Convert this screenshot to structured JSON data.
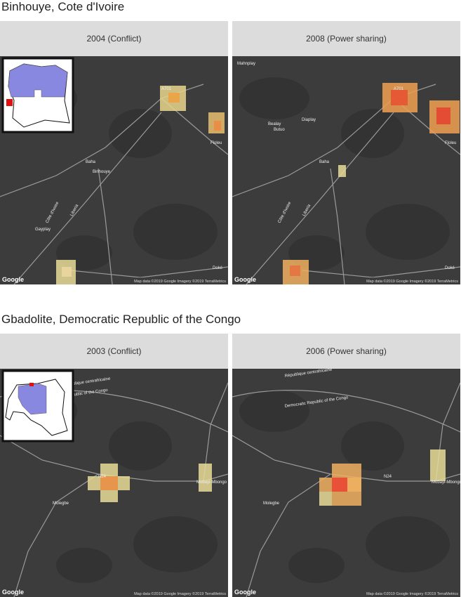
{
  "attribution": "Map data ©2019 Google  Imagery ©2019 TerraMetrics",
  "logo": "Google",
  "sections": [
    {
      "title": "Binhouye, Cote d'Ivoire",
      "panels": [
        {
          "header": "2004 (Conflict)",
          "places": [
            "Binhouye",
            "Baha",
            "Gayplay",
            "Liberia",
            "Côte d'Ivoire",
            "Floleu",
            "Doké",
            "A701"
          ]
        },
        {
          "header": "2008 (Power sharing)",
          "places": [
            "Mahnplay",
            "Bealay",
            "Butuo",
            "Diaplay",
            "Baha",
            "Liberia",
            "Côte d'Ivoire",
            "Floleu",
            "Doké",
            "A701"
          ]
        }
      ]
    },
    {
      "title": "Gbadolite, Democratic Republic of the Congo",
      "panels": [
        {
          "header": "2003 (Conflict)",
          "places": [
            "République centrafricaine",
            "Republic of the Congo",
            "N24",
            "Molegbe",
            "Mobayi-Mbongo"
          ]
        },
        {
          "header": "2006 (Power sharing)",
          "places": [
            "République centrafricaine",
            "Democratic Republic of the Congo",
            "N24",
            "Molegbe",
            "Mobayi-Mbongo"
          ]
        }
      ]
    }
  ]
}
